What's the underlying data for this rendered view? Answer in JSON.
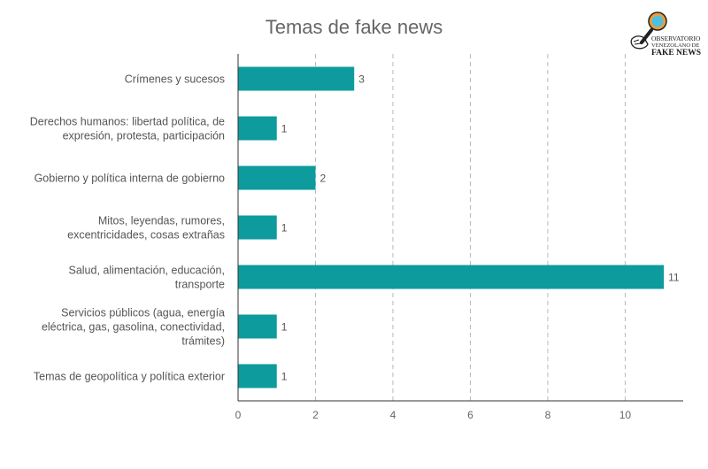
{
  "logo": {
    "line1": "OBSERVATORIO",
    "line2": "VENEZOLANO DE",
    "line3": "FAKE NEWS"
  },
  "chart_data": {
    "type": "bar",
    "orientation": "horizontal",
    "title": "Temas de fake news",
    "xlabel": "",
    "ylabel": "",
    "categories": [
      [
        "Crímenes y sucesos"
      ],
      [
        "Derechos humanos: libertad política, de",
        "expresión, protesta, participación"
      ],
      [
        "Gobierno y política interna de gobierno"
      ],
      [
        "Mitos, leyendas, rumores,",
        "excentricidades, cosas extrañas"
      ],
      [
        "Salud, alimentación, educación,",
        "transporte"
      ],
      [
        "Servicios públicos (agua, energía",
        "eléctrica, gas, gasolina, conectividad,",
        "trámites)"
      ],
      [
        "Temas de geopolítica y política exterior"
      ]
    ],
    "values": [
      3,
      1,
      2,
      1,
      11,
      1,
      1
    ],
    "xlim": [
      0,
      11.5
    ],
    "xticks": [
      0,
      2,
      4,
      6,
      8,
      10
    ],
    "grid": "vertical-dashed",
    "legend": "none",
    "colors": {
      "bar": "#0d9b9e",
      "grid": "#b8b8b8",
      "axis": "#333333"
    }
  }
}
